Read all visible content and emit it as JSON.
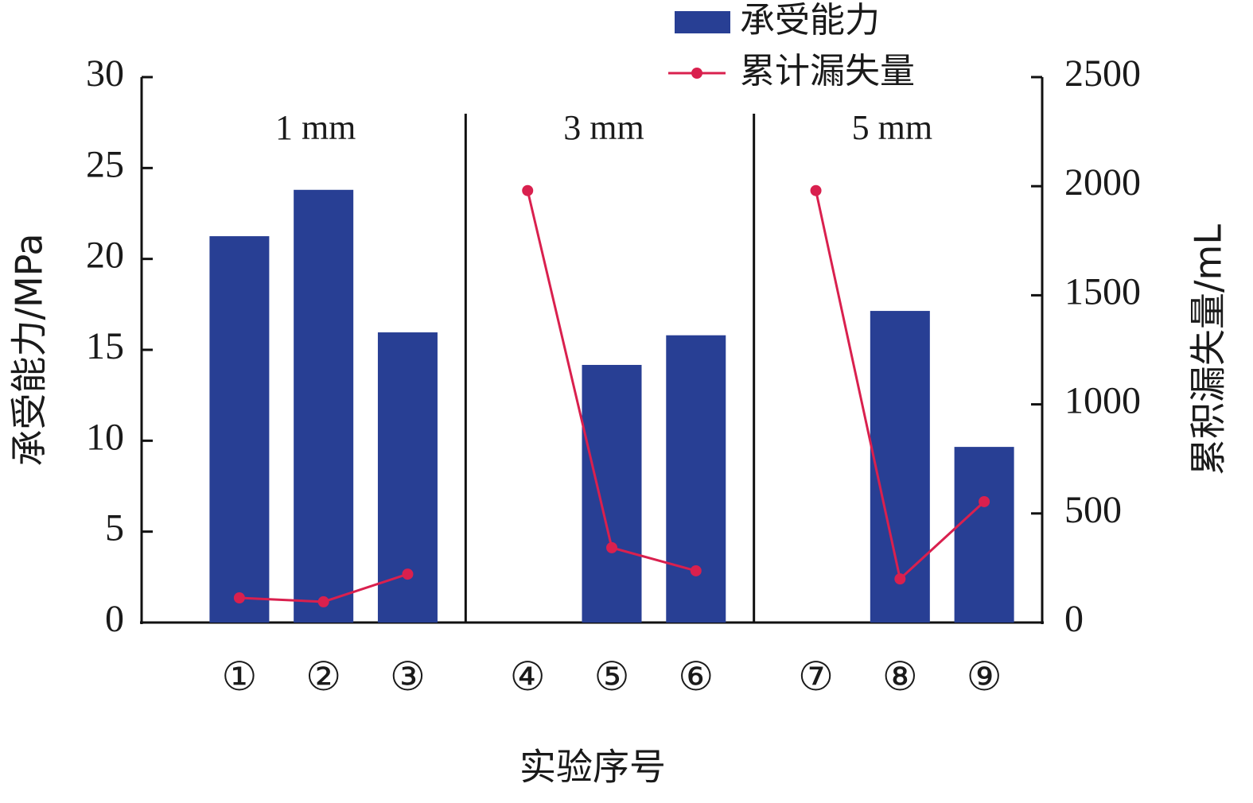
{
  "chart_data": {
    "type": "bar-line",
    "groups": [
      {
        "label": "1 mm",
        "categories": [
          "①",
          "②",
          "③"
        ]
      },
      {
        "label": "3 mm",
        "categories": [
          "④",
          "⑤",
          "⑥"
        ]
      },
      {
        "label": "5 mm",
        "categories": [
          "⑦",
          "⑧",
          "⑨"
        ]
      }
    ],
    "x_label": "实验序号",
    "y_label": "承受能力/MPa",
    "y2_label": "累积漏失量/mL",
    "series": [
      {
        "name": "承受能力",
        "type": "bar",
        "color": "#283f94",
        "values": [
          21.25,
          23.8,
          15.96,
          null,
          14.17,
          15.8,
          null,
          17.14,
          9.66
        ]
      },
      {
        "name": "累计漏失量",
        "type": "line",
        "axis": "y2",
        "color": "#d9204e",
        "values": [
          113,
          95,
          222,
          1980,
          343,
          237,
          1980,
          200,
          554
        ]
      }
    ],
    "ylim": [
      0,
      30
    ],
    "yticks": [
      0,
      5,
      10,
      15,
      20,
      25,
      30
    ],
    "y2lim": [
      0,
      2500
    ],
    "y2ticks": [
      0,
      500,
      1000,
      1500,
      2000,
      2500
    ]
  }
}
